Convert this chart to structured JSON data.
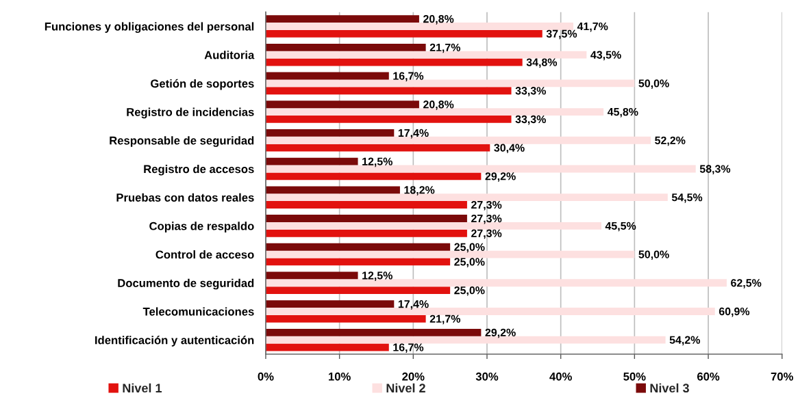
{
  "chart_data": {
    "type": "bar",
    "orientation": "horizontal",
    "categories": [
      "Funciones y obligaciones del personal",
      "Auditoria",
      "Getión de soportes",
      "Registro de incidencias",
      "Responsable de seguridad",
      "Registro de accesos",
      "Pruebas con datos reales",
      "Copias de respaldo",
      "Control de acceso",
      "Documento de seguridad",
      "Telecomunicaciones",
      "Identificación y autenticación"
    ],
    "series": [
      {
        "name": "Nivel 1",
        "color": "#e2120f",
        "values": [
          37.5,
          34.8,
          33.3,
          33.3,
          30.4,
          29.2,
          27.3,
          27.3,
          25.0,
          25.0,
          21.7,
          16.7
        ],
        "value_labels": [
          "37,5%",
          "34,8%",
          "33,3%",
          "33,3%",
          "30,4%",
          "29,2%",
          "27,3%",
          "27,3%",
          "25,0%",
          "25,0%",
          "21,7%",
          "16,7%"
        ]
      },
      {
        "name": "Nivel 2",
        "color": "#fde0e0",
        "values": [
          41.7,
          43.5,
          50.0,
          45.8,
          52.2,
          58.3,
          54.5,
          45.5,
          50.0,
          62.5,
          60.9,
          54.2
        ],
        "value_labels": [
          "41,7%",
          "43,5%",
          "50,0%",
          "45,8%",
          "52,2%",
          "58,3%",
          "54,5%",
          "45,5%",
          "50,0%",
          "62,5%",
          "60,9%",
          "54,2%"
        ]
      },
      {
        "name": "Nivel 3",
        "color": "#7b0a0a",
        "values": [
          20.8,
          21.7,
          16.7,
          20.8,
          17.4,
          12.5,
          18.2,
          27.3,
          25.0,
          12.5,
          17.4,
          29.2
        ],
        "value_labels": [
          "20,8%",
          "21,7%",
          "16,7%",
          "20,8%",
          "17,4%",
          "12,5%",
          "18,2%",
          "27,3%",
          "25,0%",
          "12,5%",
          "17,4%",
          "29,2%"
        ]
      }
    ],
    "xlim": [
      0,
      70
    ],
    "xticks": [
      {
        "value": 0,
        "label": "0%"
      },
      {
        "value": 10,
        "label": "10%"
      },
      {
        "value": 20,
        "label": "20%"
      },
      {
        "value": 30,
        "label": "30%"
      },
      {
        "value": 40,
        "label": "40%"
      },
      {
        "value": 50,
        "label": "50%"
      },
      {
        "value": 60,
        "label": "60%"
      },
      {
        "value": 70,
        "label": "70%"
      }
    ],
    "grid": "x",
    "legend": "bottom"
  }
}
